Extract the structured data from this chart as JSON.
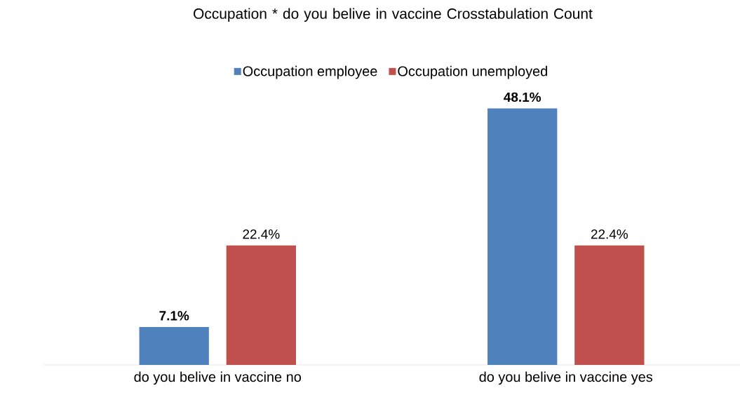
{
  "chart_data": {
    "type": "bar",
    "title": "Occupation * do you belive in vaccine Crosstabulation Count",
    "categories": [
      "do you belive in vaccine no",
      "do you belive in vaccine yes"
    ],
    "series": [
      {
        "name": "Occupation employee",
        "color": "#4f81bd",
        "values": [
          7.1,
          48.1
        ],
        "value_labels": [
          "7.1%",
          "48.1%"
        ]
      },
      {
        "name": "Occupation unemployed",
        "color": "#c0504d",
        "values": [
          22.4,
          22.4
        ],
        "value_labels": [
          "22.4%",
          "22.4%"
        ]
      }
    ],
    "legend": "top"
  }
}
